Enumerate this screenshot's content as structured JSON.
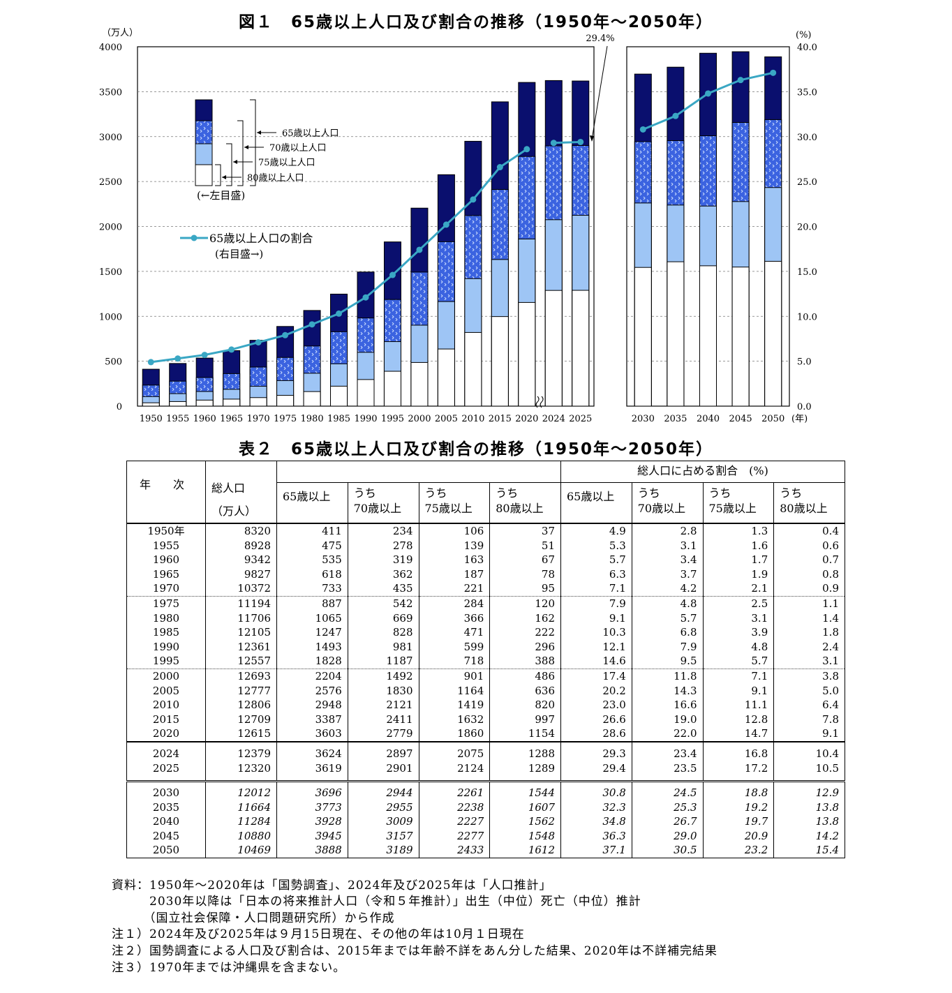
{
  "figure": {
    "title": "図１　65歳以上人口及び割合の推移（1950年～2050年）",
    "left_unit": "（万人）",
    "right_unit": "(%)",
    "year_unit": "(年)",
    "callout_label": "29.4%",
    "legend_bars": [
      "65歳以上人口",
      "70歳以上人口",
      "75歳以上人口",
      "80歳以上人口"
    ],
    "legend_bars_note": "(←左目盛)",
    "legend_line": "65歳以上人口の割合",
    "legend_line_note": "(右目盛→)",
    "colors": {
      "p65": "#0a0f6e",
      "p70": "#3b63e0",
      "p75": "#9ec5f5",
      "p80": "#ffffff",
      "line": "#3aa7c4"
    }
  },
  "chart_data": {
    "type": "bar",
    "stacked": true,
    "title": "図１　65歳以上人口及び割合の推移（1950年～2050年）",
    "left_axis": {
      "label": "（万人）",
      "ylim": [
        0,
        4000
      ],
      "ticks": [
        "0",
        "500",
        "1000",
        "1500",
        "2000",
        "2500",
        "3000",
        "3500",
        "4000"
      ]
    },
    "right_axis": {
      "label": "(%)",
      "ylim": [
        0,
        40
      ],
      "ticks": [
        "0.0",
        "5.0",
        "10.0",
        "15.0",
        "20.0",
        "25.0",
        "30.0",
        "35.0",
        "40.0"
      ]
    },
    "categories": [
      "1950",
      "1955",
      "1960",
      "1965",
      "1970",
      "1975",
      "1980",
      "1985",
      "1990",
      "1995",
      "2000",
      "2005",
      "2010",
      "2015",
      "2020",
      "2024",
      "2025",
      "2030",
      "2035",
      "2040",
      "2045",
      "2050"
    ],
    "series": [
      {
        "name": "65歳以上人口",
        "values": [
          411,
          475,
          535,
          618,
          733,
          887,
          1065,
          1247,
          1493,
          1828,
          2204,
          2576,
          2948,
          3387,
          3603,
          3624,
          3619,
          3696,
          3773,
          3928,
          3945,
          3888
        ]
      },
      {
        "name": "70歳以上人口",
        "values": [
          234,
          278,
          319,
          362,
          435,
          542,
          669,
          828,
          981,
          1187,
          1492,
          1830,
          2121,
          2411,
          2779,
          2897,
          2901,
          2944,
          2955,
          3009,
          3157,
          3189
        ]
      },
      {
        "name": "75歳以上人口",
        "values": [
          106,
          139,
          163,
          187,
          221,
          284,
          366,
          471,
          599,
          718,
          901,
          1164,
          1419,
          1632,
          1860,
          2075,
          2124,
          2261,
          2238,
          2227,
          2277,
          2433
        ]
      },
      {
        "name": "80歳以上人口",
        "values": [
          37,
          51,
          67,
          78,
          95,
          120,
          162,
          222,
          296,
          388,
          486,
          636,
          820,
          997,
          1154,
          1288,
          1289,
          1544,
          1607,
          1562,
          1548,
          1612
        ]
      },
      {
        "name": "65歳以上人口の割合",
        "axis": "right",
        "type": "line",
        "values": [
          4.9,
          5.3,
          5.7,
          6.3,
          7.1,
          7.9,
          9.1,
          10.3,
          12.1,
          14.6,
          17.4,
          20.2,
          23.0,
          26.6,
          28.6,
          29.3,
          29.4,
          30.8,
          32.3,
          34.8,
          36.3,
          37.1
        ]
      }
    ],
    "annotations": [
      "29.4%"
    ],
    "grid": "dashed horizontal",
    "legend_position": "top-left"
  },
  "table": {
    "title": "表２　65歳以上人口及び割合の推移（1950年～2050年）",
    "headers": {
      "year": "年　　次",
      "total": "総人口",
      "total_unit": "（万人）",
      "share_group": "総人口に占める割合　(%)",
      "p65": "65歳以上",
      "uchi": "うち",
      "p70": "70歳以上",
      "p75": "75歳以上",
      "p80": "80歳以上"
    },
    "rows": [
      [
        "1950年",
        "8320",
        "411",
        "234",
        "106",
        "37",
        "4.9",
        "2.8",
        "1.3",
        "0.4"
      ],
      [
        "1955",
        "8928",
        "475",
        "278",
        "139",
        "51",
        "5.3",
        "3.1",
        "1.6",
        "0.6"
      ],
      [
        "1960",
        "9342",
        "535",
        "319",
        "163",
        "67",
        "5.7",
        "3.4",
        "1.7",
        "0.7"
      ],
      [
        "1965",
        "9827",
        "618",
        "362",
        "187",
        "78",
        "6.3",
        "3.7",
        "1.9",
        "0.8"
      ],
      [
        "1970",
        "10372",
        "733",
        "435",
        "221",
        "95",
        "7.1",
        "4.2",
        "2.1",
        "0.9"
      ],
      [
        "1975",
        "11194",
        "887",
        "542",
        "284",
        "120",
        "7.9",
        "4.8",
        "2.5",
        "1.1"
      ],
      [
        "1980",
        "11706",
        "1065",
        "669",
        "366",
        "162",
        "9.1",
        "5.7",
        "3.1",
        "1.4"
      ],
      [
        "1985",
        "12105",
        "1247",
        "828",
        "471",
        "222",
        "10.3",
        "6.8",
        "3.9",
        "1.8"
      ],
      [
        "1990",
        "12361",
        "1493",
        "981",
        "599",
        "296",
        "12.1",
        "7.9",
        "4.8",
        "2.4"
      ],
      [
        "1995",
        "12557",
        "1828",
        "1187",
        "718",
        "388",
        "14.6",
        "9.5",
        "5.7",
        "3.1"
      ],
      [
        "2000",
        "12693",
        "2204",
        "1492",
        "901",
        "486",
        "17.4",
        "11.8",
        "7.1",
        "3.8"
      ],
      [
        "2005",
        "12777",
        "2576",
        "1830",
        "1164",
        "636",
        "20.2",
        "14.3",
        "9.1",
        "5.0"
      ],
      [
        "2010",
        "12806",
        "2948",
        "2121",
        "1419",
        "820",
        "23.0",
        "16.6",
        "11.1",
        "6.4"
      ],
      [
        "2015",
        "12709",
        "3387",
        "2411",
        "1632",
        "997",
        "26.6",
        "19.0",
        "12.8",
        "7.8"
      ],
      [
        "2020",
        "12615",
        "3603",
        "2779",
        "1860",
        "1154",
        "28.6",
        "22.0",
        "14.7",
        "9.1"
      ],
      [
        "2024",
        "12379",
        "3624",
        "2897",
        "2075",
        "1288",
        "29.3",
        "23.4",
        "16.8",
        "10.4"
      ],
      [
        "2025",
        "12320",
        "3619",
        "2901",
        "2124",
        "1289",
        "29.4",
        "23.5",
        "17.2",
        "10.5"
      ],
      [
        "2030",
        "12012",
        "3696",
        "2944",
        "2261",
        "1544",
        "30.8",
        "24.5",
        "18.8",
        "12.9"
      ],
      [
        "2035",
        "11664",
        "3773",
        "2955",
        "2238",
        "1607",
        "32.3",
        "25.3",
        "19.2",
        "13.8"
      ],
      [
        "2040",
        "11284",
        "3928",
        "3009",
        "2227",
        "1562",
        "34.8",
        "26.7",
        "19.7",
        "13.8"
      ],
      [
        "2045",
        "10880",
        "3945",
        "3157",
        "2277",
        "1548",
        "36.3",
        "29.0",
        "20.9",
        "14.2"
      ],
      [
        "2050",
        "10469",
        "3888",
        "3189",
        "2433",
        "1612",
        "37.1",
        "30.5",
        "23.2",
        "15.4"
      ]
    ]
  },
  "notes": [
    "資料：1950年～2020年は「国勢調査」、2024年及び2025年は「人口推計」",
    "　　　2030年以降は「日本の将来推計人口（令和５年推計）」出生（中位）死亡（中位）推計",
    "　　　（国立社会保障・人口問題研究所）から作成",
    "注１）2024年及び2025年は９月15日現在、その他の年は10月１日現在",
    "注２）国勢調査による人口及び割合は、2015年までは年齢不詳をあん分した結果、2020年は不詳補完結果",
    "注３）1970年までは沖縄県を含まない。"
  ]
}
